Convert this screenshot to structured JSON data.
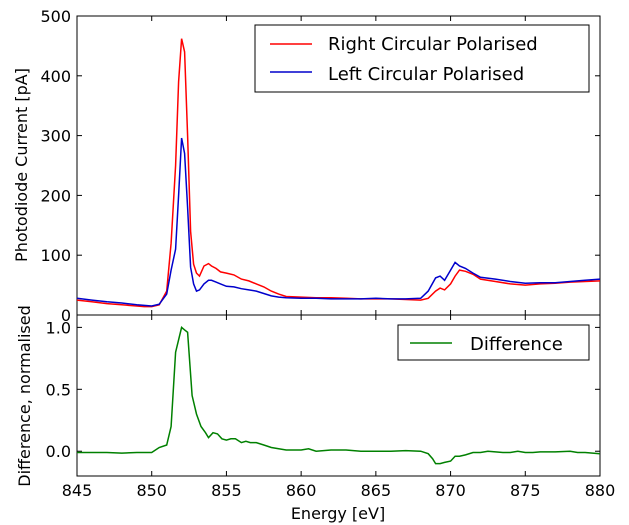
{
  "chart_data": [
    {
      "type": "line",
      "ylabel": "Photodiode Current [pA]",
      "xlim": [
        845,
        880
      ],
      "ylim": [
        0,
        500
      ],
      "yticks": [
        0,
        100,
        200,
        300,
        400,
        500
      ],
      "legend": "top-right",
      "series": [
        {
          "name": "Right Circular Polarised",
          "color": "#ff0000",
          "x": [
            845,
            846,
            847,
            848,
            849,
            849.5,
            850,
            850.5,
            851,
            851.3,
            851.6,
            851.8,
            852,
            852.2,
            852.4,
            852.6,
            852.8,
            853,
            853.2,
            853.5,
            853.8,
            854,
            854.3,
            854.6,
            855,
            855.5,
            856,
            856.5,
            857,
            857.5,
            858,
            858.5,
            859,
            860,
            861,
            862,
            863,
            864,
            865,
            866,
            867,
            868,
            868.5,
            869,
            869.3,
            869.6,
            870,
            870.3,
            870.6,
            871,
            871.5,
            872,
            873,
            874,
            875,
            876,
            877,
            878,
            879,
            880
          ],
          "y": [
            25,
            22,
            19,
            17,
            15,
            14,
            14,
            17,
            40,
            120,
            250,
            390,
            462,
            440,
            300,
            140,
            85,
            70,
            65,
            82,
            86,
            82,
            78,
            72,
            70,
            67,
            60,
            57,
            52,
            47,
            40,
            35,
            31,
            30,
            29,
            29,
            28,
            27,
            27,
            27,
            26,
            25,
            28,
            40,
            45,
            42,
            52,
            65,
            75,
            73,
            68,
            60,
            56,
            52,
            50,
            52,
            53,
            55,
            56,
            57
          ]
        },
        {
          "name": "Left Circular Polarised",
          "color": "#0000cc",
          "x": [
            845,
            846,
            847,
            848,
            849,
            849.5,
            850,
            850.5,
            851,
            851.3,
            851.6,
            851.8,
            852,
            852.2,
            852.4,
            852.6,
            852.8,
            853,
            853.2,
            853.5,
            853.8,
            854,
            854.3,
            854.6,
            855,
            855.5,
            856,
            856.5,
            857,
            857.5,
            858,
            858.5,
            859,
            860,
            861,
            862,
            863,
            864,
            865,
            866,
            867,
            868,
            868.5,
            869,
            869.3,
            869.6,
            870,
            870.3,
            870.6,
            871,
            871.5,
            872,
            873,
            874,
            875,
            876,
            877,
            878,
            879,
            880
          ],
          "y": [
            28,
            25,
            22,
            20,
            17,
            16,
            15,
            18,
            35,
            75,
            110,
            200,
            296,
            270,
            180,
            80,
            52,
            40,
            42,
            52,
            58,
            58,
            55,
            52,
            48,
            47,
            44,
            42,
            40,
            36,
            32,
            30,
            29,
            28,
            28,
            27,
            27,
            27,
            28,
            27,
            27,
            28,
            40,
            62,
            65,
            58,
            75,
            88,
            82,
            78,
            70,
            63,
            60,
            56,
            53,
            54,
            54,
            56,
            58,
            60
          ]
        }
      ]
    },
    {
      "type": "line",
      "xlabel": "Energy [eV]",
      "ylabel": "Difference, normalised",
      "xlim": [
        845,
        880
      ],
      "ylim": [
        -0.2,
        1.1
      ],
      "yticks": [
        0.0,
        0.5,
        1.0
      ],
      "xticks": [
        845,
        850,
        855,
        860,
        865,
        870,
        875,
        880
      ],
      "legend": "top-right",
      "series": [
        {
          "name": "Difference",
          "color": "#008000",
          "x": [
            845,
            846,
            847,
            848,
            849,
            850,
            850.5,
            851,
            851.3,
            851.6,
            851.8,
            852,
            852.2,
            852.4,
            852.7,
            853,
            853.3,
            853.6,
            853.8,
            854.1,
            854.4,
            854.7,
            855,
            855.3,
            855.6,
            856,
            856.3,
            856.6,
            857,
            857.5,
            858,
            858.5,
            859,
            860,
            860.5,
            861,
            862,
            863,
            864,
            865,
            866,
            867,
            868,
            868.5,
            868.8,
            869,
            869.3,
            869.6,
            870,
            870.3,
            870.6,
            871,
            871.5,
            872,
            872.5,
            873,
            873.5,
            874,
            874.5,
            875,
            875.5,
            876,
            877,
            878,
            878.5,
            879,
            880
          ],
          "y": [
            -0.01,
            -0.01,
            -0.01,
            -0.015,
            -0.01,
            -0.01,
            0.03,
            0.05,
            0.2,
            0.8,
            0.9,
            1.0,
            0.98,
            0.96,
            0.45,
            0.3,
            0.2,
            0.15,
            0.11,
            0.15,
            0.14,
            0.1,
            0.09,
            0.1,
            0.1,
            0.07,
            0.08,
            0.07,
            0.07,
            0.05,
            0.03,
            0.02,
            0.01,
            0.01,
            0.02,
            0.0,
            0.01,
            0.01,
            0.0,
            0.0,
            0.0,
            0.005,
            0.0,
            -0.02,
            -0.06,
            -0.1,
            -0.1,
            -0.09,
            -0.08,
            -0.04,
            -0.04,
            -0.03,
            -0.01,
            -0.01,
            0.0,
            -0.005,
            -0.01,
            -0.01,
            0.0,
            -0.01,
            -0.01,
            -0.005,
            -0.005,
            0.0,
            -0.01,
            -0.01,
            -0.02
          ]
        }
      ]
    }
  ]
}
